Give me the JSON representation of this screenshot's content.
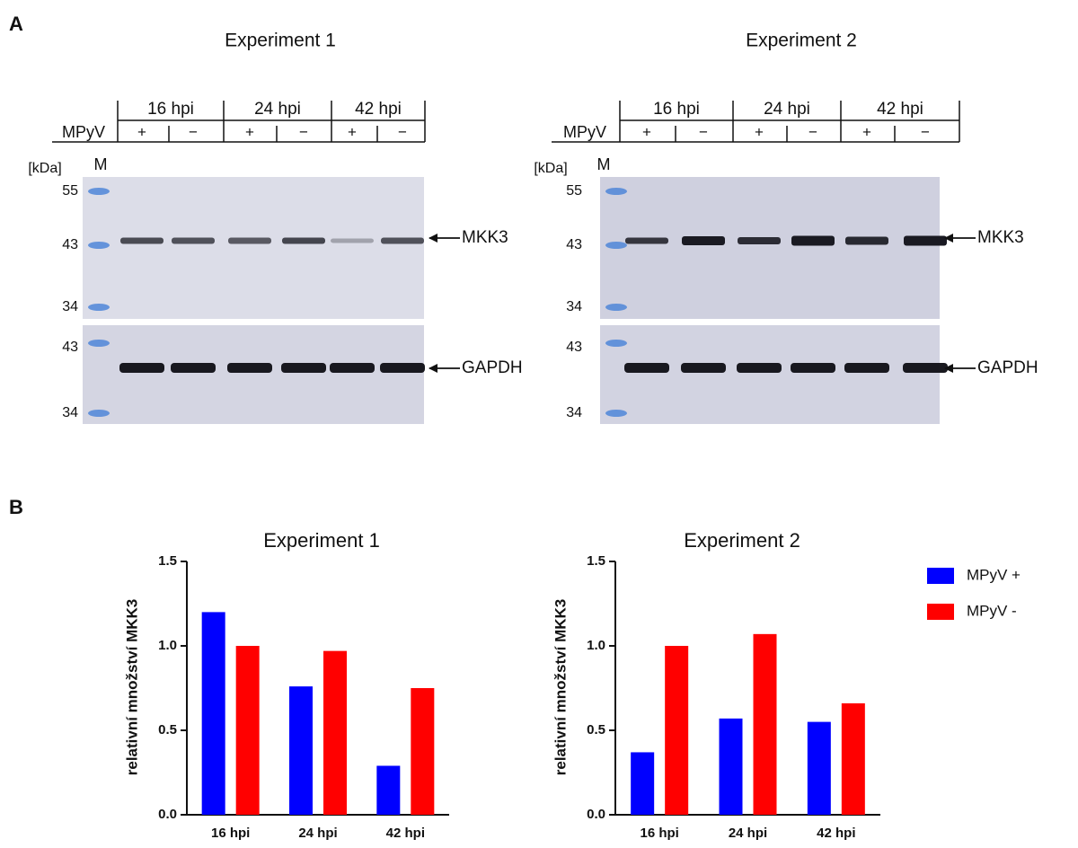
{
  "panel_a": {
    "label": "A",
    "experiments": [
      {
        "title": "Experiment 1",
        "timepoints": [
          "16 hpi",
          "24 hpi",
          "42 hpi"
        ],
        "row_label": "MPyV",
        "lanes": [
          "+",
          "−",
          "+",
          "−",
          "+",
          "−"
        ],
        "unit": "[kDa]",
        "marker": "M",
        "upper_markers": [
          "55",
          "43",
          "34"
        ],
        "lower_markers": [
          "43",
          "34"
        ],
        "bands": [
          "MKK3",
          "GAPDH"
        ]
      },
      {
        "title": "Experiment 2",
        "timepoints": [
          "16 hpi",
          "24 hpi",
          "42 hpi"
        ],
        "row_label": "MPyV",
        "lanes": [
          "+",
          "−",
          "+",
          "−",
          "+",
          "−"
        ],
        "unit": "[kDa]",
        "marker": "M",
        "upper_markers": [
          "55",
          "43",
          "34"
        ],
        "lower_markers": [
          "43",
          "34"
        ],
        "bands": [
          "MKK3",
          "GAPDH"
        ]
      }
    ]
  },
  "panel_b": {
    "label": "B"
  },
  "chart_data": [
    {
      "type": "bar",
      "title": "Experiment 1",
      "y_label": "relativní množství MKK3",
      "categories": [
        "16 hpi",
        "24 hpi",
        "42 hpi"
      ],
      "series": [
        {
          "color": "#0000ff",
          "values": [
            1.2,
            0.76,
            0.29
          ]
        },
        {
          "color": "#ff0000",
          "values": [
            1.0,
            0.97,
            0.75
          ]
        }
      ],
      "ylim": [
        0,
        1.5
      ],
      "yticks": [
        {
          "value": 0,
          "label": "0.0"
        },
        0.5,
        {
          "value": 1,
          "label": "1.0"
        },
        1.5
      ]
    },
    {
      "type": "bar",
      "title": "Experiment 2",
      "y_label": "relativní množství MKK3",
      "categories": [
        "16 hpi",
        "24 hpi",
        "42 hpi"
      ],
      "series": [
        {
          "name": "MPyV +",
          "color": "#0000ff",
          "values": [
            0.37,
            0.57,
            0.55
          ]
        },
        {
          "name": "MPyV -",
          "color": "#ff0000",
          "values": [
            1.0,
            1.07,
            0.66
          ]
        }
      ],
      "ylim": [
        0,
        1.5
      ],
      "yticks": [
        {
          "value": 0,
          "label": "0.0"
        },
        0.5,
        {
          "value": 1,
          "label": "1.0"
        },
        1.5
      ],
      "legend": "upper right"
    }
  ]
}
